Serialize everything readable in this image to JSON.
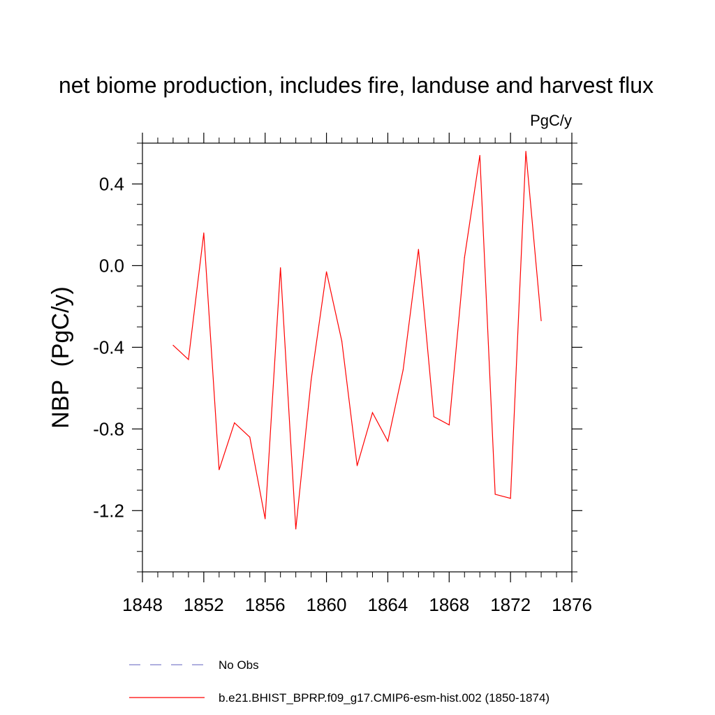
{
  "chart_data": {
    "type": "line",
    "title": "net biome production, includes fire, landuse and harvest flux",
    "units_label": "PgC/y",
    "ylabel": "NBP  (PgC/y)",
    "xlabel": "",
    "xlim": [
      1848,
      1876
    ],
    "ylim": [
      -1.5,
      0.6
    ],
    "x_ticks": [
      1848,
      1852,
      1856,
      1860,
      1864,
      1868,
      1872,
      1876
    ],
    "x_tick_labels": [
      "1848",
      "1852",
      "1856",
      "1860",
      "1864",
      "1868",
      "1872",
      "1876"
    ],
    "y_ticks": [
      0.4,
      0.0,
      -0.4,
      -0.8,
      -1.2
    ],
    "y_tick_labels": [
      "0.4",
      "0.0",
      "-0.4",
      "-0.8",
      "-1.2"
    ],
    "grid": false,
    "legend_position": "bottom",
    "series": [
      {
        "name": "b.e21.BHIST_BPRP.f09_g17.CMIP6-esm-hist.002 (1850-1874)",
        "color": "#ff0000",
        "style": "solid",
        "x": [
          1850,
          1851,
          1852,
          1853,
          1854,
          1855,
          1856,
          1857,
          1858,
          1859,
          1860,
          1861,
          1862,
          1863,
          1864,
          1865,
          1866,
          1867,
          1868,
          1869,
          1870,
          1871,
          1872,
          1873,
          1874
        ],
        "y": [
          -0.39,
          -0.46,
          0.16,
          -1.0,
          -0.77,
          -0.84,
          -1.24,
          -0.01,
          -1.29,
          -0.56,
          -0.03,
          -0.37,
          -0.98,
          -0.72,
          -0.86,
          -0.51,
          0.08,
          -0.74,
          -0.78,
          0.04,
          0.54,
          -1.12,
          -1.14,
          0.56,
          -0.27
        ]
      }
    ],
    "legend": [
      {
        "label": "No Obs",
        "color": "#7f7fcc",
        "style": "dashed"
      },
      {
        "label": "b.e21.BHIST_BPRP.f09_g17.CMIP6-esm-hist.002 (1850-1874)",
        "color": "#ff0000",
        "style": "solid"
      }
    ]
  }
}
